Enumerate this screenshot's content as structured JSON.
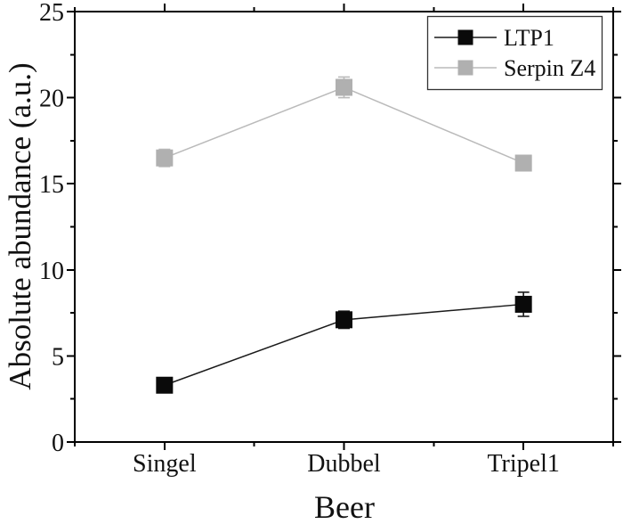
{
  "chart_data": {
    "type": "line",
    "title": "",
    "xlabel": "Beer",
    "ylabel": "Absolute abundance (a.u.)",
    "categories": [
      "Singel",
      "Dubbel",
      "Tripel1"
    ],
    "series": [
      {
        "name": "LTP1",
        "values": [
          3.3,
          7.1,
          8.0
        ],
        "errors": [
          0.2,
          0.5,
          0.7
        ],
        "marker_color": "#0a0a0a",
        "line_color": "#1a1a1a"
      },
      {
        "name": "Serpin Z4",
        "values": [
          16.5,
          20.6,
          16.2
        ],
        "errors": [
          0.5,
          0.6,
          0.3
        ],
        "marker_color": "#b0b0b0",
        "line_color": "#bababa"
      }
    ],
    "ylim": [
      0,
      25
    ],
    "yticks_major": [
      0,
      5,
      10,
      15,
      20,
      25
    ],
    "ytick_minor_step": 2.5,
    "marker": "square",
    "marker_size": 19,
    "grid": false,
    "legend_position": "top-right",
    "axis_color": "#000000",
    "background_color": "#ffffff"
  }
}
